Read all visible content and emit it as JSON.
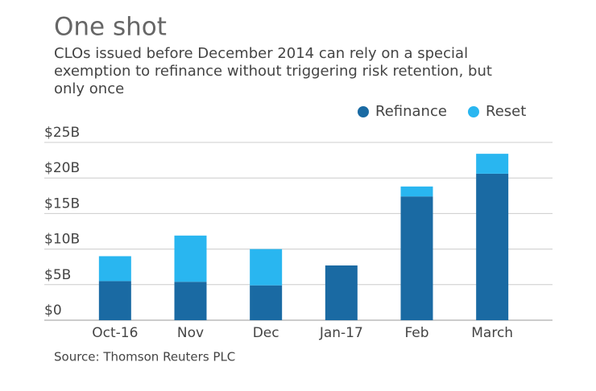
{
  "chart_data": {
    "type": "bar",
    "stacked": true,
    "title": "One shot",
    "subtitle": [
      "CLOs issued before December 2014 can rely on a special",
      "exemption to refinance without triggering risk retention, but",
      "only once"
    ],
    "source": "Source: Thomson Reuters PLC",
    "categories": [
      "Oct-16",
      "Nov",
      "Dec",
      "Jan-17",
      "Feb",
      "March"
    ],
    "series": [
      {
        "name": "Refinance",
        "color": "#1a6aa3",
        "values": [
          5.5,
          5.4,
          4.9,
          7.7,
          17.4,
          20.6
        ]
      },
      {
        "name": "Reset",
        "color": "#29b6f0",
        "values": [
          3.5,
          6.5,
          5.1,
          0,
          1.4,
          2.8
        ]
      }
    ],
    "ylim": [
      0,
      25
    ],
    "yticks": [
      {
        "value": 0,
        "label": "$0"
      },
      {
        "value": 5,
        "label": "$5B"
      },
      {
        "value": 10,
        "label": "$10B"
      },
      {
        "value": 15,
        "label": "$15B"
      },
      {
        "value": 20,
        "label": "$20B"
      },
      {
        "value": 25,
        "label": "$25B"
      }
    ],
    "grid": true,
    "legend": "top-right"
  }
}
